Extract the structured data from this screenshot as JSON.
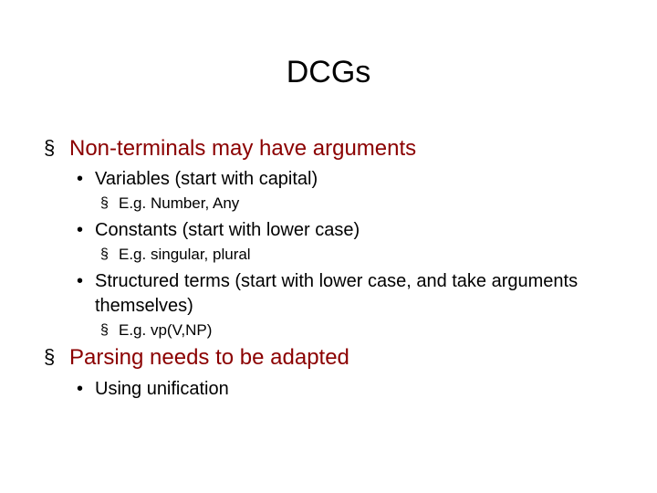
{
  "slide": {
    "title": "DCGs",
    "title_fontsize": 34,
    "background_color": "#ffffff",
    "text_color": "#000000",
    "level1_color": "#8b0000",
    "font_family": "Arial",
    "bullets": {
      "level1_marker": "§",
      "level2_marker": "•",
      "level3_marker": "§"
    },
    "items": [
      {
        "text": "Non-terminals may have arguments",
        "children": [
          {
            "text": "Variables (start with capital)",
            "children": [
              {
                "text": "E.g. Number, Any"
              }
            ]
          },
          {
            "text": "Constants (start with lower case)",
            "children": [
              {
                "text": "E.g. singular, plural"
              }
            ]
          },
          {
            "text": "Structured terms (start with lower case, and take arguments themselves)",
            "children": [
              {
                "text": "E.g. vp(V,NP)"
              }
            ]
          }
        ]
      },
      {
        "text": "Parsing needs to be adapted",
        "children": [
          {
            "text": "Using unification"
          }
        ]
      }
    ]
  }
}
